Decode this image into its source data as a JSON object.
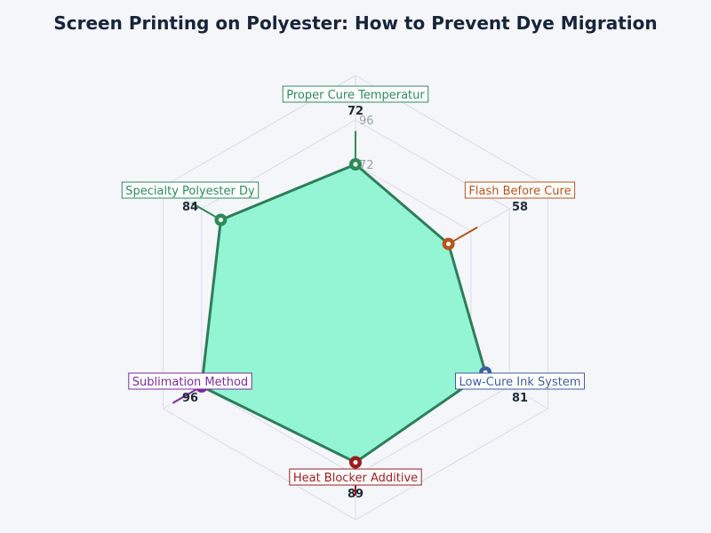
{
  "chart_data": {
    "type": "radar",
    "title": "Screen Printing on Polyester: How to Prevent Dye Migration",
    "categories": [
      "Proper Cure Temperatur",
      "Flash Before Cure",
      "Low-Cure Ink System",
      "Heat Blocker Additive",
      "Sublimation Method",
      "Specialty Polyester Dy"
    ],
    "values": [
      72,
      58,
      81,
      89,
      96,
      84
    ],
    "value_labels": [
      "72",
      "58",
      "81",
      "89",
      "96",
      "84"
    ],
    "radial_ticks": [
      "72",
      "96"
    ],
    "rlim": [
      0,
      120
    ],
    "grid": true,
    "category_colors": [
      "#2e8b57",
      "#b5541c",
      "#3e5f9e",
      "#9b1c1c",
      "#7b2c9b",
      "#2e8b57"
    ],
    "fill_color": "#93f5d3",
    "line_color": "#2e7d5b"
  }
}
